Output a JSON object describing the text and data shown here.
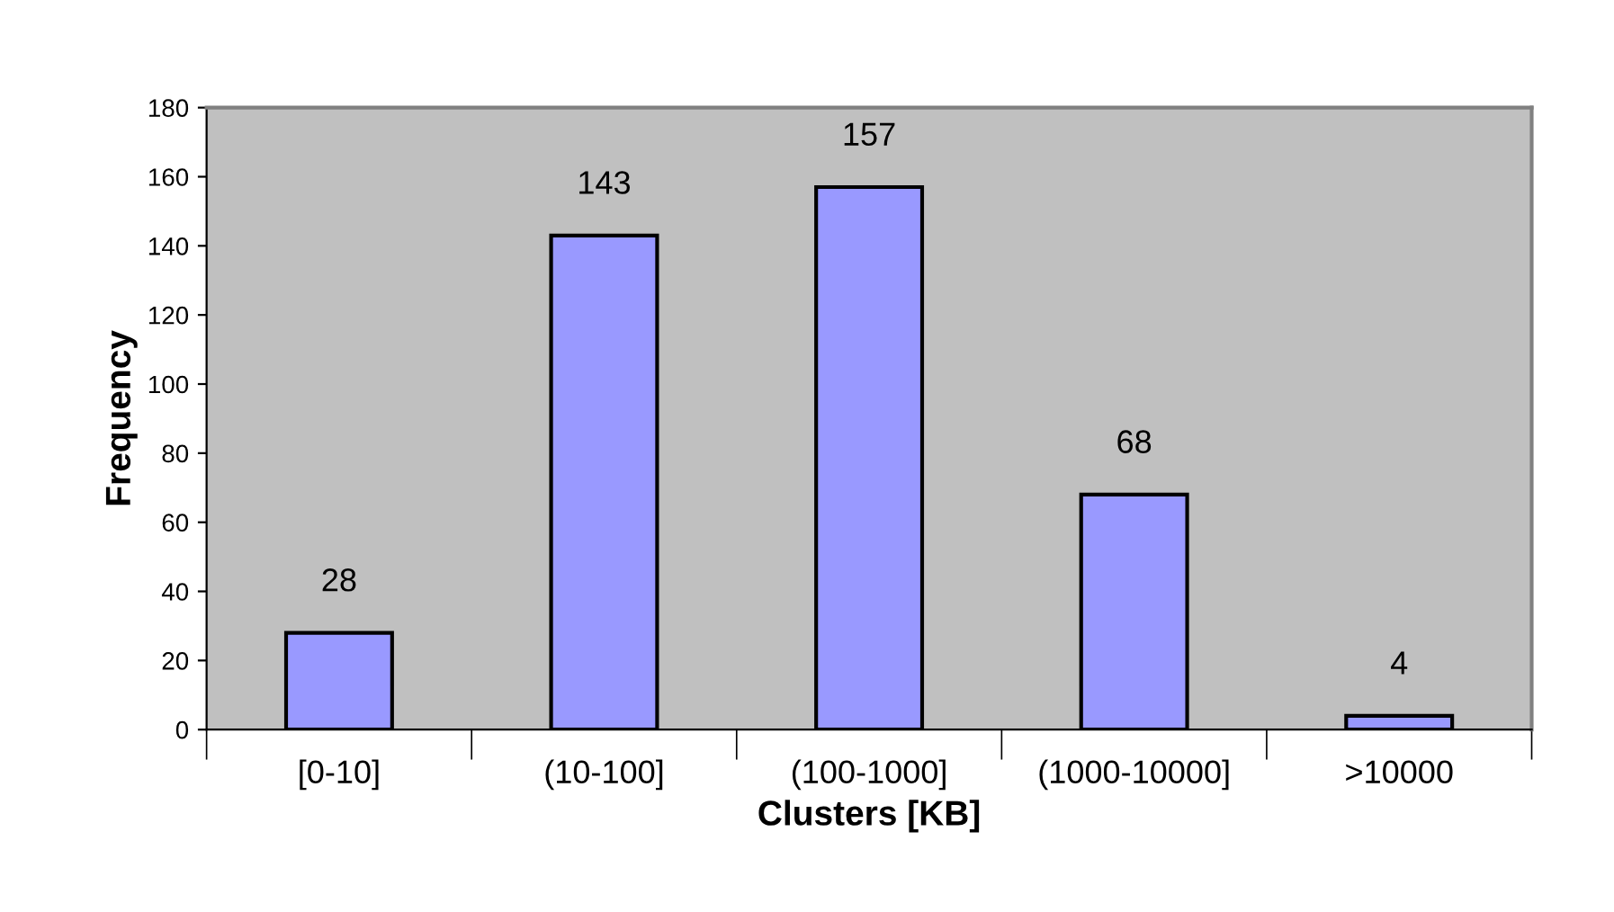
{
  "chart_data": {
    "type": "bar",
    "xlabel": "Clusters [KB]",
    "ylabel": "Frequency",
    "categories": [
      "[0-10]",
      "(10-100]",
      "(100-1000]",
      "(1000-10000]",
      ">10000"
    ],
    "values": [
      28,
      143,
      157,
      68,
      4
    ],
    "color": "#9999ff",
    "ylim": [
      0,
      180
    ],
    "yticks": [
      0,
      20,
      40,
      60,
      80,
      100,
      120,
      140,
      160,
      180
    ],
    "grid": false,
    "data_labels": true
  }
}
